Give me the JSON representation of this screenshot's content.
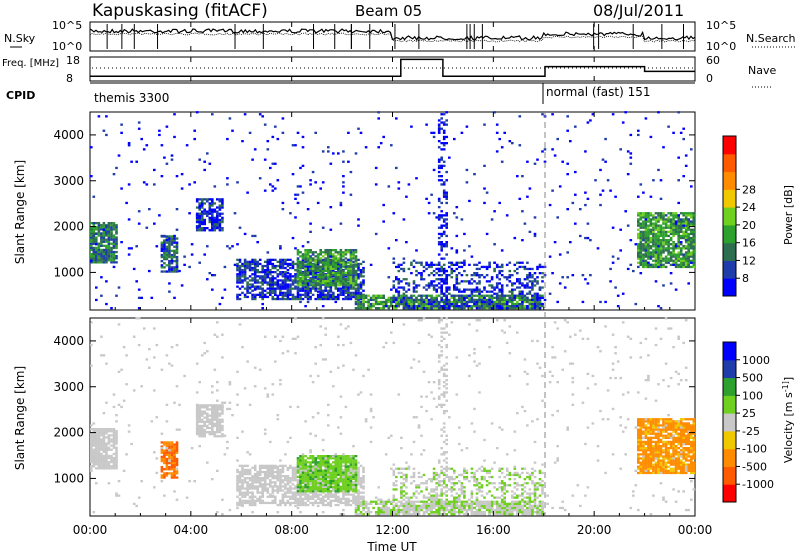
{
  "header": {
    "station": "Kapuskasing (fitACF)",
    "beam": "Beam 05",
    "date": "08/Jul/2011"
  },
  "chart_data": [
    {
      "type": "line",
      "name": "noise-panel",
      "left_label": "N.Sky",
      "right_label": "N.Search",
      "left_ticks": [
        "10^5",
        "10^0"
      ],
      "right_ticks": [
        "10^5",
        "10^0"
      ]
    },
    {
      "type": "line",
      "name": "freq-nave-panel",
      "left_label": "Freq. [MHz]",
      "right_label": "Nave",
      "left_ticks": [
        18,
        8
      ],
      "right_ticks": [
        60,
        0
      ],
      "freq_steps": [
        {
          "t": 0,
          "v": 10
        },
        {
          "t": 12.33,
          "v": 17
        },
        {
          "t": 14.0,
          "v": 10
        },
        {
          "t": 18.05,
          "v": 14
        },
        {
          "t": 22.0,
          "v": 12
        },
        {
          "t": 24.0,
          "v": 12
        }
      ]
    },
    {
      "type": "table",
      "name": "cpid-row",
      "label": "CPID",
      "entries": [
        {
          "t": 0,
          "text": "themis 3300"
        },
        {
          "t": 18.05,
          "text": "normal (fast) 151"
        }
      ]
    },
    {
      "type": "heatmap",
      "name": "power",
      "ylabel": "Slant Range [km]",
      "yticks": [
        1000,
        2000,
        3000,
        4000
      ],
      "ylim": [
        180,
        4500
      ],
      "colorbar_label": "Power [dB]",
      "colorbar_ticks": [
        "8",
        "12",
        "16",
        "20",
        "24",
        "28"
      ],
      "colorbar_range": [
        4,
        32
      ],
      "colors": [
        "#0000ff",
        "#1e3caa",
        "#2e6e50",
        "#2ea02e",
        "#70d020",
        "#f0c800",
        "#ff8c00",
        "#ff5a00",
        "#ff0000"
      ],
      "blobs": [
        {
          "t0": 0.0,
          "t1": 1.0,
          "r0": 1200,
          "r1": 2100,
          "p": 0.85,
          "v": 12
        },
        {
          "t0": 2.8,
          "t1": 3.5,
          "r0": 1000,
          "r1": 1800,
          "p": 0.75,
          "v": 10
        },
        {
          "t0": 4.2,
          "t1": 5.2,
          "r0": 1900,
          "r1": 2600,
          "p": 0.75,
          "v": 8
        },
        {
          "t0": 5.8,
          "t1": 10.8,
          "r0": 400,
          "r1": 1300,
          "p": 0.7,
          "v": 8
        },
        {
          "t0": 8.2,
          "t1": 10.5,
          "r0": 700,
          "r1": 1500,
          "p": 0.8,
          "v": 14
        },
        {
          "t0": 10.5,
          "t1": 18.0,
          "r0": 200,
          "r1": 500,
          "p": 0.8,
          "v": 14
        },
        {
          "t0": 12.0,
          "t1": 18.0,
          "r0": 200,
          "r1": 1200,
          "p": 0.35,
          "v": 8
        },
        {
          "t0": 21.7,
          "t1": 24.0,
          "r0": 1100,
          "r1": 2300,
          "p": 0.85,
          "v": 14
        },
        {
          "t0": 0.0,
          "t1": 24.0,
          "r0": 200,
          "r1": 4500,
          "p": 0.025,
          "v": 6
        },
        {
          "t0": 13.8,
          "t1": 14.2,
          "r0": 200,
          "r1": 4500,
          "p": 0.3,
          "v": 6
        }
      ]
    },
    {
      "type": "heatmap",
      "name": "velocity",
      "ylabel": "Slant Range [km]",
      "yticks": [
        1000,
        2000,
        3000,
        4000
      ],
      "ylim": [
        180,
        4500
      ],
      "colorbar_label": "Velocity [m s^-1]",
      "colorbar_ticks": [
        "-1000",
        "-500",
        "-100",
        "-25",
        "25",
        "100",
        "500",
        "1000"
      ],
      "colorbar_range": [
        -1200,
        1200
      ],
      "colors": [
        "#ff0000",
        "#ff5a00",
        "#ff8c00",
        "#f0c800",
        "#c8c8c8",
        "#70d020",
        "#2ea02e",
        "#1e3caa",
        "#0000ff"
      ],
      "blobs": [
        {
          "t0": 0.0,
          "t1": 1.0,
          "r0": 1200,
          "r1": 2100,
          "p": 0.85,
          "v": 0
        },
        {
          "t0": 2.8,
          "t1": 3.5,
          "r0": 1000,
          "r1": 1800,
          "p": 0.75,
          "v": -700
        },
        {
          "t0": 4.2,
          "t1": 5.2,
          "r0": 1900,
          "r1": 2600,
          "p": 0.75,
          "v": 0
        },
        {
          "t0": 5.8,
          "t1": 10.8,
          "r0": 400,
          "r1": 1300,
          "p": 0.7,
          "v": 0
        },
        {
          "t0": 8.2,
          "t1": 10.5,
          "r0": 700,
          "r1": 1500,
          "p": 0.8,
          "v": 350
        },
        {
          "t0": 10.5,
          "t1": 18.0,
          "r0": 200,
          "r1": 500,
          "p": 0.8,
          "v": 120
        },
        {
          "t0": 12.0,
          "t1": 18.0,
          "r0": 200,
          "r1": 1200,
          "p": 0.35,
          "v": 120
        },
        {
          "t0": 21.7,
          "t1": 24.0,
          "r0": 1100,
          "r1": 2300,
          "p": 0.85,
          "v": -500
        },
        {
          "t0": 0.0,
          "t1": 24.0,
          "r0": 200,
          "r1": 4500,
          "p": 0.025,
          "v": 0
        },
        {
          "t0": 13.8,
          "t1": 14.2,
          "r0": 200,
          "r1": 4500,
          "p": 0.3,
          "v": 0
        }
      ]
    }
  ],
  "x_axis": {
    "label": "Time UT",
    "tick_labels": [
      "00:00",
      "04:00",
      "08:00",
      "12:00",
      "16:00",
      "20:00",
      "00:00"
    ],
    "tick_hours": [
      0,
      4,
      8,
      12,
      16,
      20,
      24
    ],
    "xlim": [
      0,
      24
    ]
  },
  "markers": {
    "dashed_time": 18.05
  }
}
